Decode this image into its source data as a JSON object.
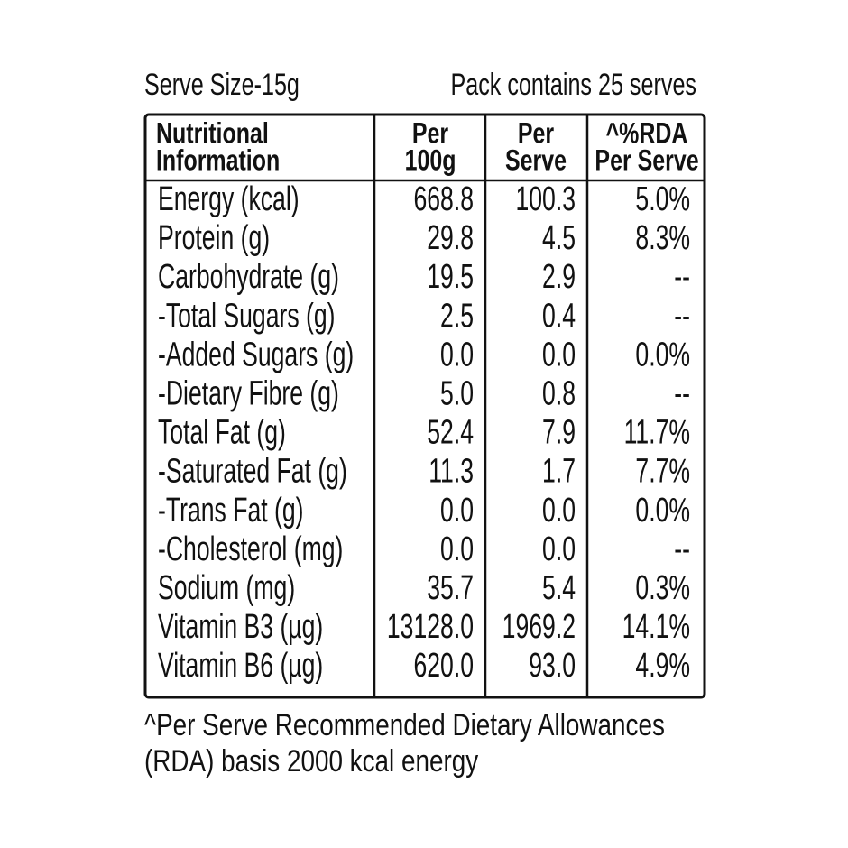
{
  "serve_size": "Serve Size-15g",
  "pack_contains": "Pack contains 25 serves",
  "table": {
    "header": [
      [
        "Nutritional",
        "Information"
      ],
      [
        "Per",
        "100g"
      ],
      [
        "Per",
        "Serve"
      ],
      [
        "^%RDA",
        "Per Serve"
      ]
    ],
    "rows": [
      [
        "Energy (kcal)",
        "668.8",
        "100.3",
        "5.0%"
      ],
      [
        "Protein (g)",
        "29.8",
        "4.5",
        "8.3%"
      ],
      [
        "Carbohydrate (g)",
        "19.5",
        "2.9",
        "--"
      ],
      [
        "-Total Sugars (g)",
        "2.5",
        "0.4",
        "--"
      ],
      [
        "-Added Sugars (g)",
        "0.0",
        "0.0",
        "0.0%"
      ],
      [
        "-Dietary Fibre (g)",
        "5.0",
        "0.8",
        "--"
      ],
      [
        "Total Fat (g)",
        "52.4",
        "7.9",
        "11.7%"
      ],
      [
        "-Saturated Fat (g)",
        "11.3",
        "1.7",
        "7.7%"
      ],
      [
        "-Trans Fat (g)",
        "0.0",
        "0.0",
        "0.0%"
      ],
      [
        "-Cholesterol (mg)",
        "0.0",
        "0.0",
        "--"
      ],
      [
        "Sodium (mg)",
        "35.7",
        "5.4",
        "0.3%"
      ],
      [
        "Vitamin B3 (µg)",
        "13128.0",
        "1969.2",
        "14.1%"
      ],
      [
        "Vitamin B6 (µg)",
        "620.0",
        "93.0",
        "4.9%"
      ]
    ]
  },
  "footer": [
    "^Per Serve Recommended Dietary Allowances",
    "(RDA) basis 2000 kcal energy"
  ]
}
